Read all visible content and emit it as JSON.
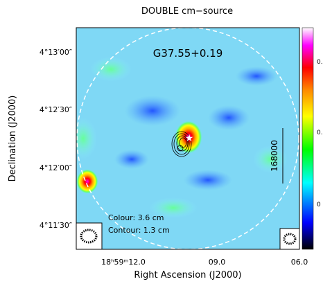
{
  "figure": {
    "title": "DOUBLE cm−source",
    "source_name": "G37.55+0.19",
    "x_axis": {
      "label": "Right Ascension (J2000)",
      "ticks": [
        "18ʰ59ᵐ12.0",
        "09.0",
        "06.0"
      ]
    },
    "y_axis": {
      "label": "Declination (J2000)",
      "ticks": [
        "4°13′00″",
        "4°12′30″",
        "4°12′00″",
        "4°11′30″"
      ]
    },
    "scale_bar": "168000",
    "legend": [
      "Colour: 3.6 cm",
      "Contour: 1.3 cm"
    ],
    "colorbar_ticks": [
      "0.",
      "0.",
      "0"
    ]
  }
}
